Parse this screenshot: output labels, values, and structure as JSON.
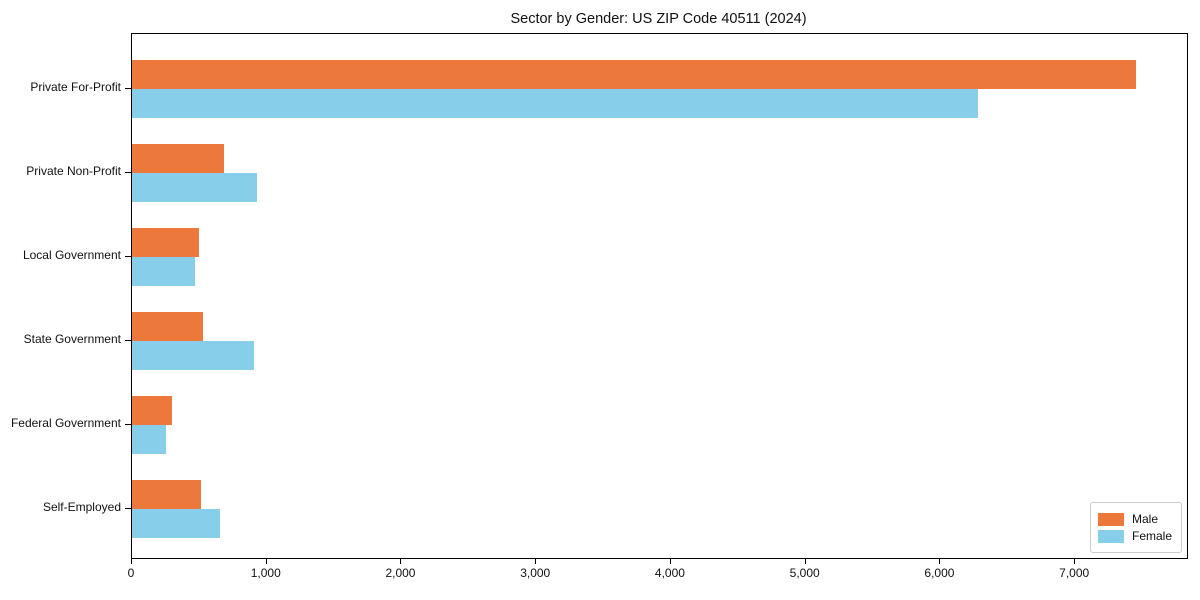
{
  "title": "Sector by Gender: US ZIP Code 40511 (2024)",
  "colors": {
    "male": "#EC793B",
    "female": "#87CEEB",
    "axis": "#000000",
    "legend_border": "#cccccc",
    "background": "#ffffff",
    "text": "#111111"
  },
  "chart_data": {
    "type": "bar",
    "orientation": "horizontal",
    "title": "Sector by Gender: US ZIP Code 40511 (2024)",
    "xlabel": "",
    "ylabel": "",
    "grid": false,
    "legend_position": "lower right",
    "categories": [
      "Private For-Profit",
      "Private Non-Profit",
      "Local Government",
      "State Government",
      "Federal Government",
      "Self-Employed"
    ],
    "series": [
      {
        "name": "Male",
        "color": "#EC793B",
        "values": [
          7450,
          685,
          495,
          525,
          295,
          510
        ]
      },
      {
        "name": "Female",
        "color": "#87CEEB",
        "values": [
          6280,
          925,
          470,
          905,
          250,
          655
        ]
      }
    ],
    "xlim": [
      0,
      7830
    ],
    "xticks": [
      {
        "value": 0,
        "label": "0"
      },
      {
        "value": 1000,
        "label": "1,000"
      },
      {
        "value": 2000,
        "label": "2,000"
      },
      {
        "value": 3000,
        "label": "3,000"
      },
      {
        "value": 4000,
        "label": "4,000"
      },
      {
        "value": 5000,
        "label": "5,000"
      },
      {
        "value": 6000,
        "label": "6,000"
      },
      {
        "value": 7000,
        "label": "7,000"
      }
    ]
  }
}
